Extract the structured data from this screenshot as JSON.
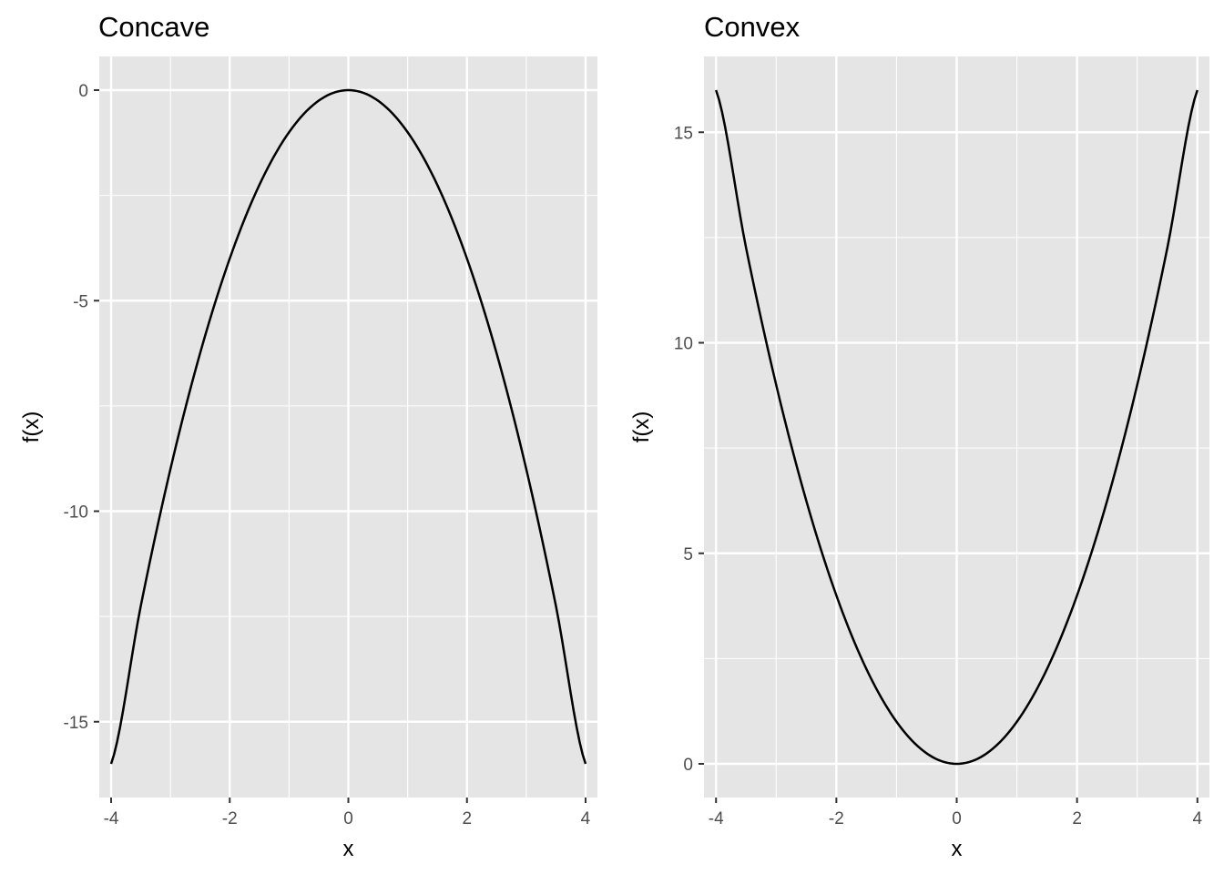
{
  "chart_data": [
    {
      "type": "line",
      "title": "Concave",
      "xlabel": "x",
      "ylabel": "f(x)",
      "xlim": [
        -4.2,
        4.2
      ],
      "ylim": [
        -16.8,
        0.8
      ],
      "xticks": [
        -4,
        -2,
        0,
        2,
        4
      ],
      "yticks": [
        -15,
        -10,
        -5,
        0
      ],
      "grid": true,
      "series": [
        {
          "x": [
            -4,
            -3.5,
            -3,
            -2.5,
            -2,
            -1.5,
            -1,
            -0.5,
            0,
            0.5,
            1,
            1.5,
            2,
            2.5,
            3,
            3.5,
            4
          ],
          "y": [
            -16,
            -12.25,
            -9,
            -6.25,
            -4,
            -2.25,
            -1,
            -0.25,
            0,
            -0.25,
            -1,
            -2.25,
            -4,
            -6.25,
            -9,
            -12.25,
            -16
          ]
        }
      ]
    },
    {
      "type": "line",
      "title": "Convex",
      "xlabel": "x",
      "ylabel": "f(x)",
      "xlim": [
        -4.2,
        4.2
      ],
      "ylim": [
        -0.8,
        16.8
      ],
      "xticks": [
        -4,
        -2,
        0,
        2,
        4
      ],
      "yticks": [
        0,
        5,
        10,
        15
      ],
      "grid": true,
      "series": [
        {
          "x": [
            -4,
            -3.5,
            -3,
            -2.5,
            -2,
            -1.5,
            -1,
            -0.5,
            0,
            0.5,
            1,
            1.5,
            2,
            2.5,
            3,
            3.5,
            4
          ],
          "y": [
            16,
            12.25,
            9,
            6.25,
            4,
            2.25,
            1,
            0.25,
            0,
            0.25,
            1,
            2.25,
            4,
            6.25,
            9,
            12.25,
            16
          ]
        }
      ]
    }
  ]
}
